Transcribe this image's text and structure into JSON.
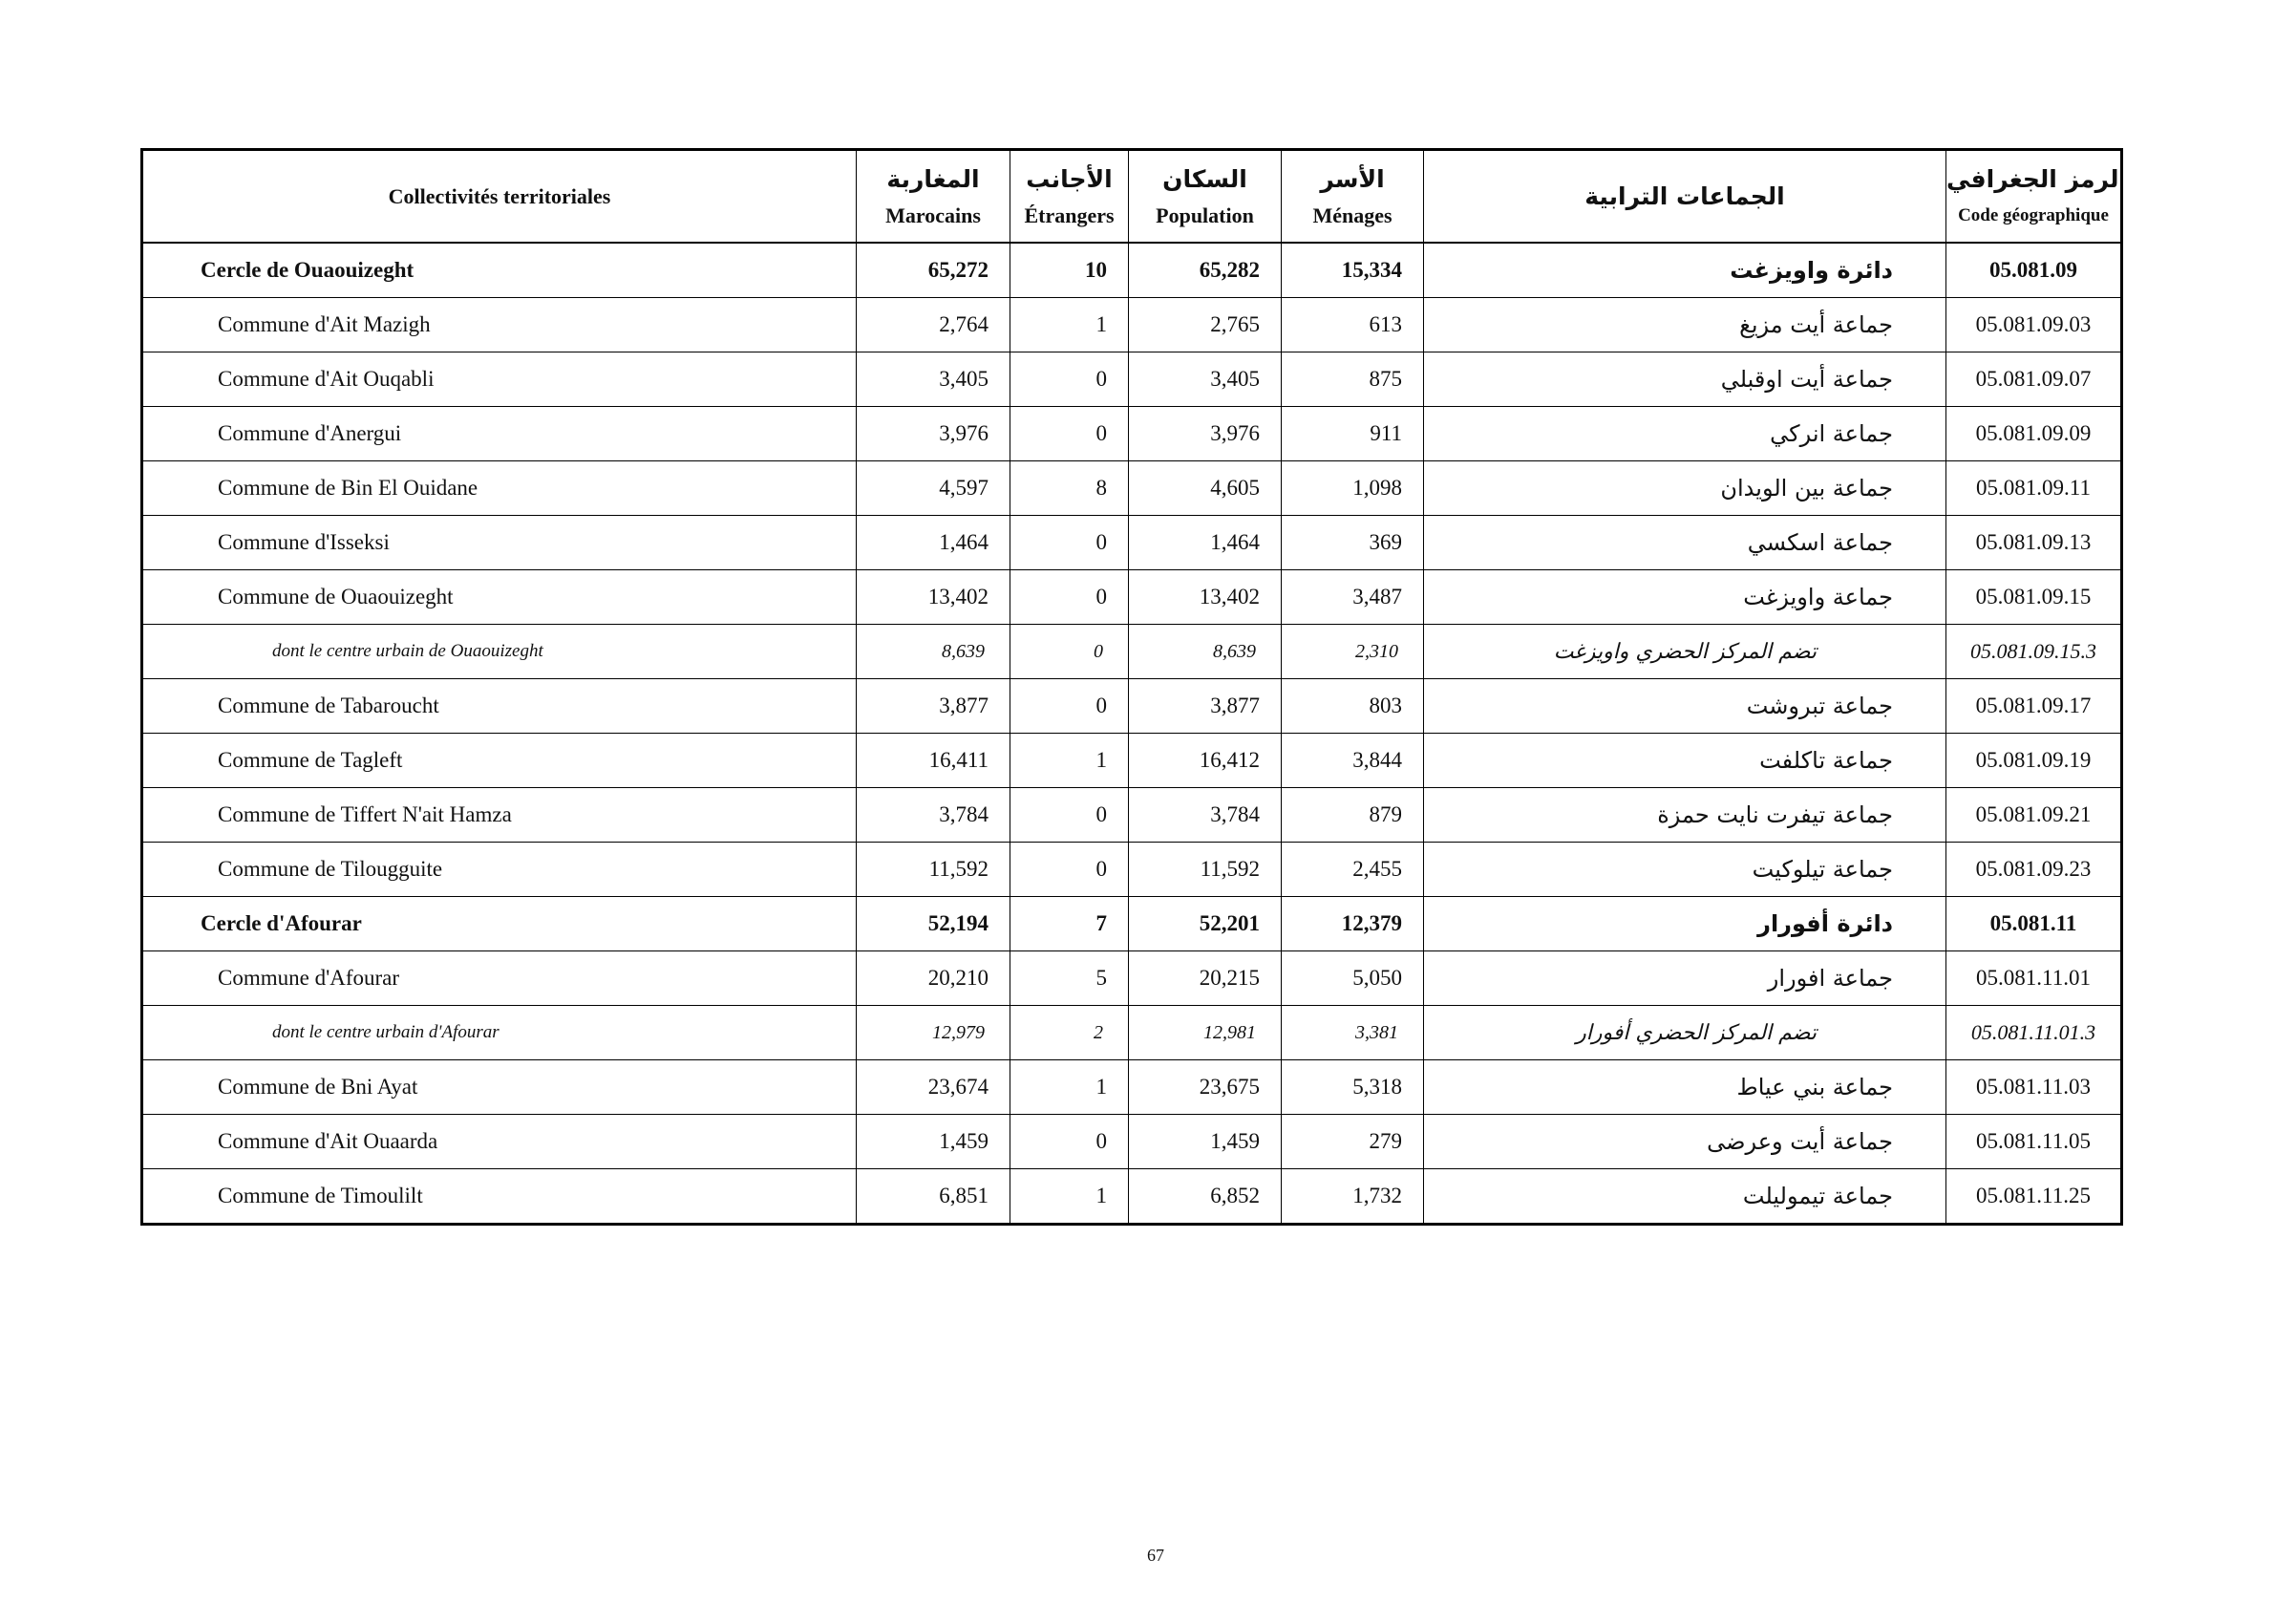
{
  "header": {
    "cells": [
      {
        "fr": "Collectivités territoriales"
      },
      {
        "ar": "المغاربة",
        "fr": "Marocains"
      },
      {
        "ar": "الأجانب",
        "fr": "Étrangers"
      },
      {
        "ar": "السكان",
        "fr": "Population"
      },
      {
        "ar": "الأسر",
        "fr": "Ménages"
      },
      {
        "ar": "الجماعات الترابية"
      },
      {
        "ar": "الرمز الجغرافي",
        "fr": "Code géographique"
      }
    ]
  },
  "cercles": [
    {
      "cells": [
        "Cercle de Ouaouizeght",
        "65,272",
        "10",
        "65,282",
        "15,334",
        "دائرة واويزغت",
        "05.081.09"
      ],
      "communes": [
        {
          "cells": [
            "Commune d'Ait Mazigh",
            "2,764",
            "1",
            "2,765",
            "613",
            "جماعة أيت مزيغ",
            "05.081.09.03"
          ]
        },
        {
          "cells": [
            "Commune d'Ait Ouqabli",
            "3,405",
            "0",
            "3,405",
            "875",
            "جماعة أيت اوقبلي",
            "05.081.09.07"
          ]
        },
        {
          "cells": [
            "Commune d'Anergui",
            "3,976",
            "0",
            "3,976",
            "911",
            "جماعة انركي",
            "05.081.09.09"
          ]
        },
        {
          "cells": [
            "Commune de Bin El Ouidane",
            "4,597",
            "8",
            "4,605",
            "1,098",
            "جماعة بين الويدان",
            "05.081.09.11"
          ]
        },
        {
          "cells": [
            "Commune d'Isseksi",
            "1,464",
            "0",
            "1,464",
            "369",
            "جماعة اسكسي",
            "05.081.09.13"
          ]
        },
        {
          "cells": [
            "Commune de Ouaouizeght",
            "13,402",
            "0",
            "13,402",
            "3,487",
            "جماعة واويزغت",
            "05.081.09.15"
          ],
          "centre": {
            "cells": [
              "dont le centre urbain de Ouaouizeght",
              "8,639",
              "0",
              "8,639",
              "2,310",
              "تضم المركز الحضري واويزغت",
              "05.081.09.15.3"
            ]
          }
        },
        {
          "cells": [
            "Commune de Tabaroucht",
            "3,877",
            "0",
            "3,877",
            "803",
            "جماعة تبروشت",
            "05.081.09.17"
          ]
        },
        {
          "cells": [
            "Commune de Tagleft",
            "16,411",
            "1",
            "16,412",
            "3,844",
            "جماعة تاكلفت",
            "05.081.09.19"
          ]
        },
        {
          "cells": [
            "Commune de Tiffert N'ait Hamza",
            "3,784",
            "0",
            "3,784",
            "879",
            "جماعة تيفرت نايت حمزة",
            "05.081.09.21"
          ]
        },
        {
          "cells": [
            "Commune de Tilougguite",
            "11,592",
            "0",
            "11,592",
            "2,455",
            "جماعة تيلوكيت",
            "05.081.09.23"
          ]
        }
      ]
    },
    {
      "cells": [
        "Cercle d'Afourar",
        "52,194",
        "7",
        "52,201",
        "12,379",
        "دائرة أفورار",
        "05.081.11"
      ],
      "communes": [
        {
          "cells": [
            "Commune d'Afourar",
            "20,210",
            "5",
            "20,215",
            "5,050",
            "جماعة افورار",
            "05.081.11.01"
          ],
          "centre": {
            "cells": [
              "dont le centre urbain d'Afourar",
              "12,979",
              "2",
              "12,981",
              "3,381",
              "تضم المركز الحضري أفورار",
              "05.081.11.01.3"
            ]
          }
        },
        {
          "cells": [
            "Commune de Bni Ayat",
            "23,674",
            "1",
            "23,675",
            "5,318",
            "جماعة بني عياط",
            "05.081.11.03"
          ]
        },
        {
          "cells": [
            "Commune d'Ait Ouaarda",
            "1,459",
            "0",
            "1,459",
            "279",
            "جماعة أيت وعرضى",
            "05.081.11.05"
          ]
        },
        {
          "cells": [
            "Commune de Timoulilt",
            "6,851",
            "1",
            "6,852",
            "1,732",
            "جماعة تيموليلت",
            "05.081.11.25"
          ]
        }
      ]
    }
  ],
  "page_number": "67"
}
